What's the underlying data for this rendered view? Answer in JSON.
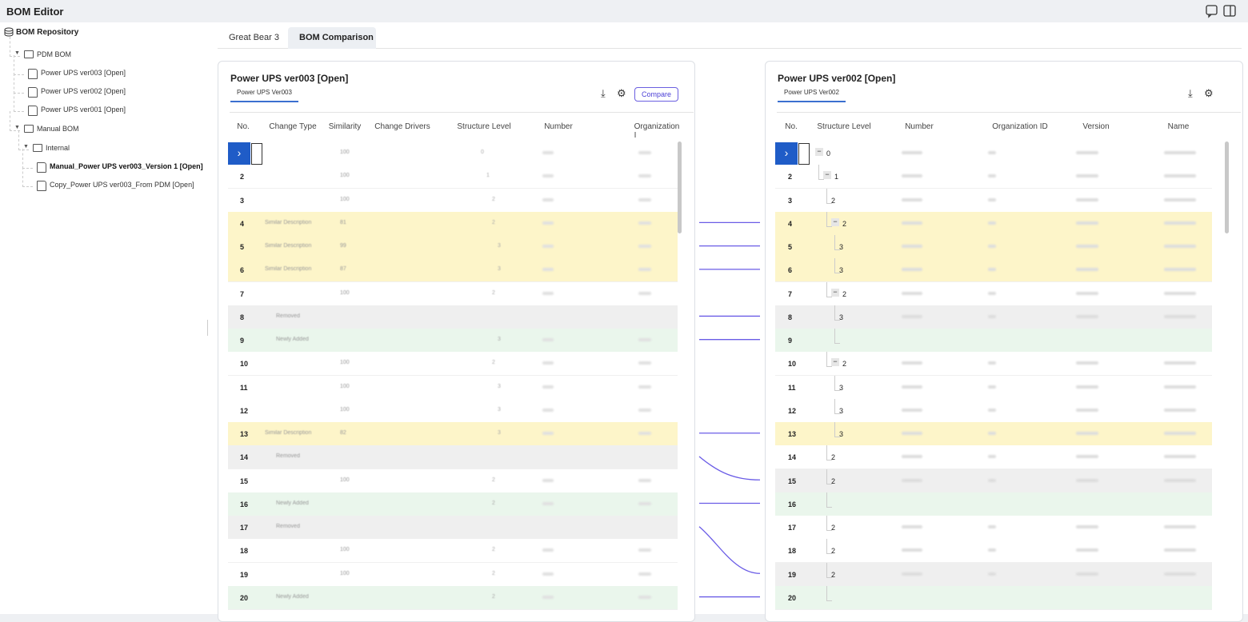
{
  "app": {
    "title": "BOM Editor"
  },
  "sidebar": {
    "root": "BOM Repository",
    "nodes": [
      {
        "label": "PDM BOM",
        "level": 1,
        "kind": "folder"
      },
      {
        "label": "Power UPS ver003 [Open]",
        "level": 2,
        "kind": "file"
      },
      {
        "label": "Power UPS ver002 [Open]",
        "level": 2,
        "kind": "file"
      },
      {
        "label": "Power UPS ver001 [Open]",
        "level": 2,
        "kind": "file"
      },
      {
        "label": "Manual BOM",
        "level": 1,
        "kind": "folder"
      },
      {
        "label": "Internal",
        "level": 2,
        "kind": "folder"
      },
      {
        "label": "Manual_Power UPS ver003_Version 1 [Open]",
        "level": 3,
        "kind": "file",
        "bold": true
      },
      {
        "label": "Copy_Power UPS ver003_From PDM [Open]",
        "level": 3,
        "kind": "file"
      }
    ]
  },
  "tabs": [
    "Great Bear 3",
    "BOM Comparison"
  ],
  "left_panel": {
    "title": "Power UPS ver003 [Open]",
    "tab": "Power UPS Ver003",
    "button": "Compare",
    "columns": [
      "No.",
      "Change Type",
      "Similarity",
      "Change Drivers",
      "Structure Level",
      "Number",
      "Organization I"
    ],
    "rows": [
      {
        "change_type": "",
        "similarity": "100",
        "level": "0",
        "state": "same"
      },
      {
        "no": "2",
        "change_type": "",
        "similarity": "100",
        "level": "1",
        "state": "same"
      },
      {
        "no": "3",
        "change_type": "",
        "similarity": "100",
        "level": "2",
        "state": "same"
      },
      {
        "no": "4",
        "change_type": "Similar Description",
        "similarity": "81",
        "level": "2",
        "state": "similar"
      },
      {
        "no": "5",
        "change_type": "Similar Description",
        "similarity": "99",
        "level": "3",
        "state": "similar"
      },
      {
        "no": "6",
        "change_type": "Similar Description",
        "similarity": "87",
        "level": "3",
        "state": "similar"
      },
      {
        "no": "7",
        "change_type": "",
        "similarity": "100",
        "level": "2",
        "state": "same"
      },
      {
        "no": "8",
        "change_type": "Removed",
        "similarity": "",
        "level": "",
        "state": "removed"
      },
      {
        "no": "9",
        "change_type": "Newly Added",
        "similarity": "",
        "level": "3",
        "state": "added"
      },
      {
        "no": "10",
        "change_type": "",
        "similarity": "100",
        "level": "2",
        "state": "same"
      },
      {
        "no": "11",
        "change_type": "",
        "similarity": "100",
        "level": "3",
        "state": "same"
      },
      {
        "no": "12",
        "change_type": "",
        "similarity": "100",
        "level": "3",
        "state": "same"
      },
      {
        "no": "13",
        "change_type": "Similar Description",
        "similarity": "82",
        "level": "3",
        "state": "similar"
      },
      {
        "no": "14",
        "change_type": "Removed",
        "similarity": "",
        "level": "",
        "state": "removed"
      },
      {
        "no": "15",
        "change_type": "",
        "similarity": "100",
        "level": "2",
        "state": "same"
      },
      {
        "no": "16",
        "change_type": "Newly Added",
        "similarity": "",
        "level": "2",
        "state": "added"
      },
      {
        "no": "17",
        "change_type": "Removed",
        "similarity": "",
        "level": "",
        "state": "removed"
      },
      {
        "no": "18",
        "change_type": "",
        "similarity": "100",
        "level": "2",
        "state": "same"
      },
      {
        "no": "19",
        "change_type": "",
        "similarity": "100",
        "level": "2",
        "state": "same"
      },
      {
        "no": "20",
        "change_type": "Newly Added",
        "similarity": "",
        "level": "2",
        "state": "added"
      }
    ]
  },
  "right_panel": {
    "title": "Power UPS ver002 [Open]",
    "tab": "Power UPS Ver002",
    "columns": [
      "No.",
      "Structure Level",
      "Number",
      "Organization ID",
      "Version",
      "Name"
    ],
    "rows": [
      {
        "level": "0",
        "depth": 0,
        "state": "same"
      },
      {
        "no": "2",
        "level": "1",
        "depth": 1,
        "state": "same"
      },
      {
        "no": "3",
        "level": "2",
        "depth": 2,
        "state": "same"
      },
      {
        "no": "4",
        "level": "2",
        "depth": 2,
        "state": "similar"
      },
      {
        "no": "5",
        "level": "3",
        "depth": 3,
        "state": "similar"
      },
      {
        "no": "6",
        "level": "3",
        "depth": 3,
        "state": "similar"
      },
      {
        "no": "7",
        "level": "2",
        "depth": 2,
        "state": "same"
      },
      {
        "no": "8",
        "level": "3",
        "depth": 3,
        "state": "removed"
      },
      {
        "no": "9",
        "level": "",
        "depth": 3,
        "state": "added"
      },
      {
        "no": "10",
        "level": "2",
        "depth": 2,
        "state": "same"
      },
      {
        "no": "11",
        "level": "3",
        "depth": 3,
        "state": "same"
      },
      {
        "no": "12",
        "level": "3",
        "depth": 3,
        "state": "same"
      },
      {
        "no": "13",
        "level": "3",
        "depth": 3,
        "state": "similar"
      },
      {
        "no": "14",
        "level": "2",
        "depth": 2,
        "state": "same"
      },
      {
        "no": "15",
        "level": "2",
        "depth": 2,
        "state": "removed"
      },
      {
        "no": "16",
        "level": "",
        "depth": 2,
        "state": "added"
      },
      {
        "no": "17",
        "level": "2",
        "depth": 2,
        "state": "same"
      },
      {
        "no": "18",
        "level": "2",
        "depth": 2,
        "state": "same"
      },
      {
        "no": "19",
        "level": "2",
        "depth": 2,
        "state": "removed"
      },
      {
        "no": "20",
        "level": "",
        "depth": 2,
        "state": "added"
      }
    ]
  }
}
